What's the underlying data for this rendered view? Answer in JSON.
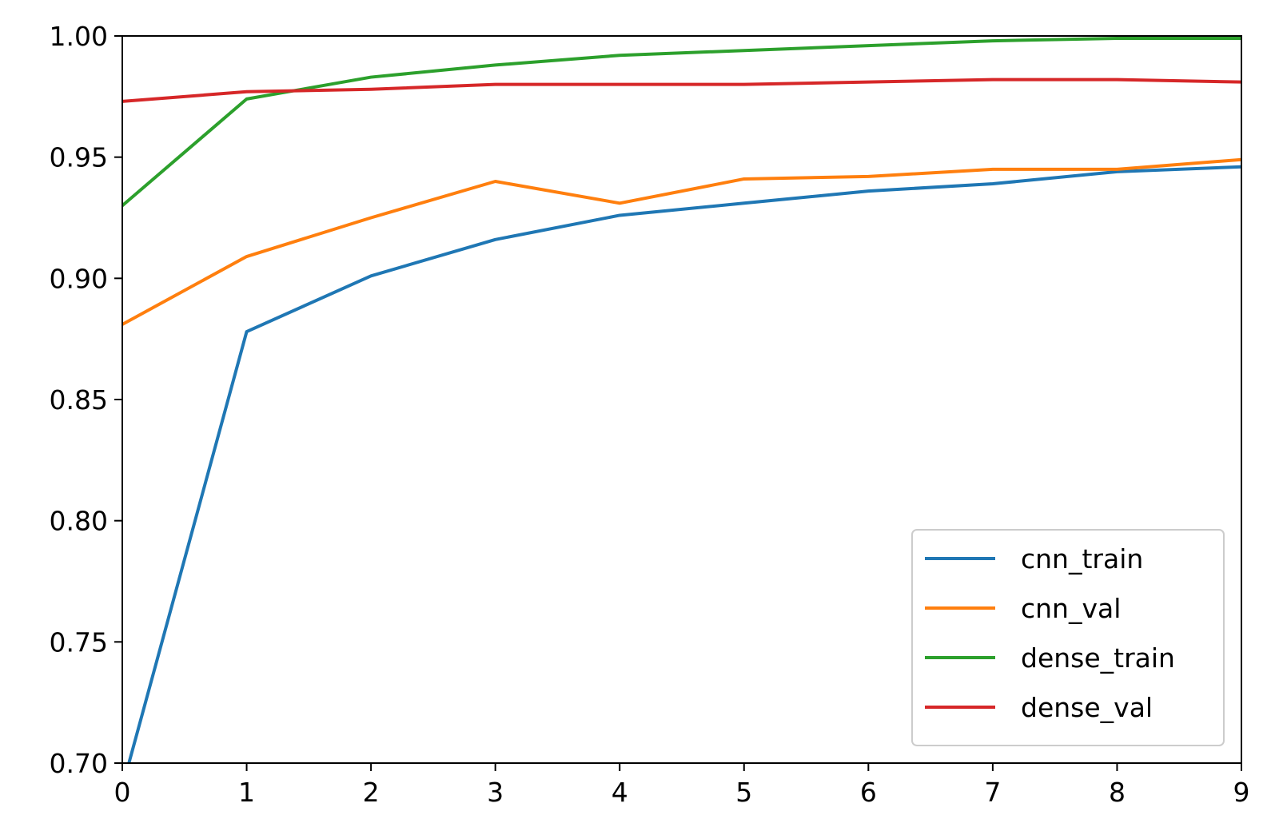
{
  "chart_data": {
    "type": "line",
    "title": "",
    "xlabel": "",
    "ylabel": "",
    "x": [
      0,
      1,
      2,
      3,
      4,
      5,
      6,
      7,
      8,
      9
    ],
    "xlim": [
      0,
      9
    ],
    "ylim": [
      0.7,
      1.0
    ],
    "xticks": [
      0,
      1,
      2,
      3,
      4,
      5,
      6,
      7,
      8,
      9
    ],
    "xtick_labels": [
      "0",
      "1",
      "2",
      "3",
      "4",
      "5",
      "6",
      "7",
      "8",
      "9"
    ],
    "yticks": [
      0.7,
      0.75,
      0.8,
      0.85,
      0.9,
      0.95,
      1.0
    ],
    "ytick_labels": [
      "0.70",
      "0.75",
      "0.80",
      "0.85",
      "0.90",
      "0.95",
      "1.00"
    ],
    "grid": false,
    "legend_position": "lower-right",
    "series": [
      {
        "name": "cnn_train",
        "color": "#1f77b4",
        "values": [
          0.69,
          0.878,
          0.901,
          0.916,
          0.926,
          0.931,
          0.936,
          0.939,
          0.944,
          0.946
        ]
      },
      {
        "name": "cnn_val",
        "color": "#ff7f0e",
        "values": [
          0.881,
          0.909,
          0.925,
          0.94,
          0.931,
          0.941,
          0.942,
          0.945,
          0.945,
          0.949
        ]
      },
      {
        "name": "dense_train",
        "color": "#2ca02c",
        "values": [
          0.93,
          0.974,
          0.983,
          0.988,
          0.992,
          0.994,
          0.996,
          0.998,
          0.999,
          0.999
        ]
      },
      {
        "name": "dense_val",
        "color": "#d62728",
        "values": [
          0.973,
          0.977,
          0.978,
          0.98,
          0.98,
          0.98,
          0.981,
          0.982,
          0.982,
          0.981
        ]
      }
    ]
  }
}
